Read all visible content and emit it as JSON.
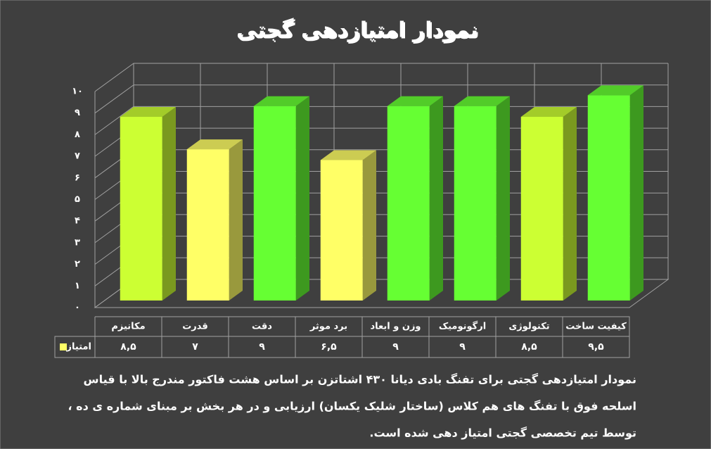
{
  "chart_data": {
    "type": "bar3d",
    "title": "نمودار امتیازدهی گجتی",
    "categories": [
      "مکانیزم",
      "قدرت",
      "دقت",
      "برد موثر",
      "وزن و ابعاد",
      "ارگونومیک",
      "تکنولوژی",
      "کیفیت ساخت"
    ],
    "series": [
      {
        "name": "امتیاز",
        "color": "#ffff66",
        "values": [
          8.5,
          7,
          9,
          6.5,
          9,
          9,
          8.5,
          9.5
        ],
        "value_labels": [
          "۸,۵",
          "۷",
          "۹",
          "۶,۵",
          "۹",
          "۹",
          "۸,۵",
          "۹,۵"
        ],
        "colors": [
          "#ccff33",
          "#ffff66",
          "#66ff33",
          "#ffff66",
          "#66ff33",
          "#66ff33",
          "#ccff33",
          "#66ff33"
        ]
      }
    ],
    "ylim": [
      0,
      10
    ],
    "yticks": [
      {
        "value": 0,
        "label": "٠"
      },
      {
        "value": 1,
        "label": "۱"
      },
      {
        "value": 2,
        "label": "۲"
      },
      {
        "value": 3,
        "label": "۳"
      },
      {
        "value": 4,
        "label": "۴"
      },
      {
        "value": 5,
        "label": "۵"
      },
      {
        "value": 6,
        "label": "۶"
      },
      {
        "value": 7,
        "label": "۷"
      },
      {
        "value": 8,
        "label": "۸"
      },
      {
        "value": 9,
        "label": "۹"
      },
      {
        "value": 10,
        "label": "۱۰"
      }
    ],
    "grid": true,
    "caption": [
      "نمودار امتیازدهی گجتی برای تفنگ بادی دیانا ۴۳۰ اشتاتزن  بر اساس هشت فاکتور مندرج بالا با قیاس",
      "اسلحه فوق با تفنگ های هم کلاس (ساختار شلیک یکسان) ارزیابی و در هر بخش بر مبنای شماره ی ده ،",
      "توسط تیم تخصصی گجتی امتیاز دهی شده است."
    ]
  }
}
